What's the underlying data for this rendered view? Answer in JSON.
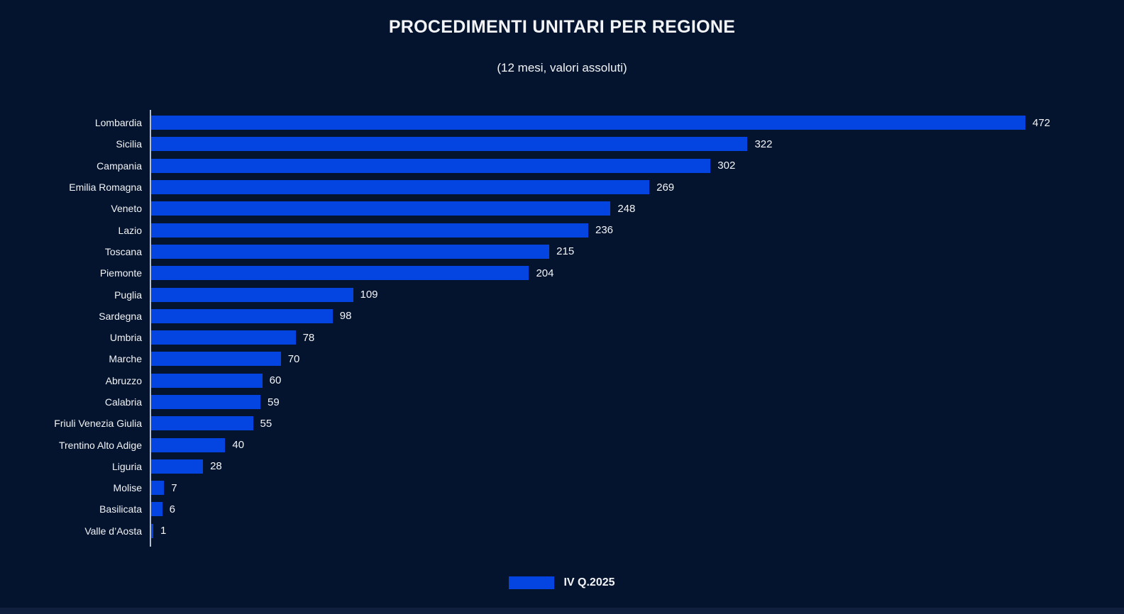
{
  "theme": {
    "background_color": "#05142e",
    "bottom_strip_color": "#101f3d",
    "text_color": "#f2f4f7",
    "axis_line_color": "#b6c0cd",
    "bar_color": "#0444e0"
  },
  "chart_data": {
    "type": "bar",
    "orientation": "horizontal",
    "title": "PROCEDIMENTI UNITARI PER REGIONE",
    "subtitle": "(12 mesi, valori assoluti)",
    "categories": [
      "Lombardia",
      "Sicilia",
      "Campania",
      "Emilia Romagna",
      "Veneto",
      "Lazio",
      "Toscana",
      "Piemonte",
      "Puglia",
      "Sardegna",
      "Umbria",
      "Marche",
      "Abruzzo",
      "Calabria",
      "Friuli Venezia Giulia",
      "Trentino Alto Adige",
      "Liguria",
      "Molise",
      "Basilicata",
      "Valle d’Aosta"
    ],
    "values": [
      472,
      322,
      302,
      269,
      248,
      236,
      215,
      204,
      109,
      98,
      78,
      70,
      60,
      59,
      55,
      40,
      28,
      7,
      6,
      1
    ],
    "series_name": "IV Q.2025",
    "xlim": [
      0,
      472
    ],
    "value_labels": true,
    "grid": false,
    "legend_position": "bottom"
  }
}
